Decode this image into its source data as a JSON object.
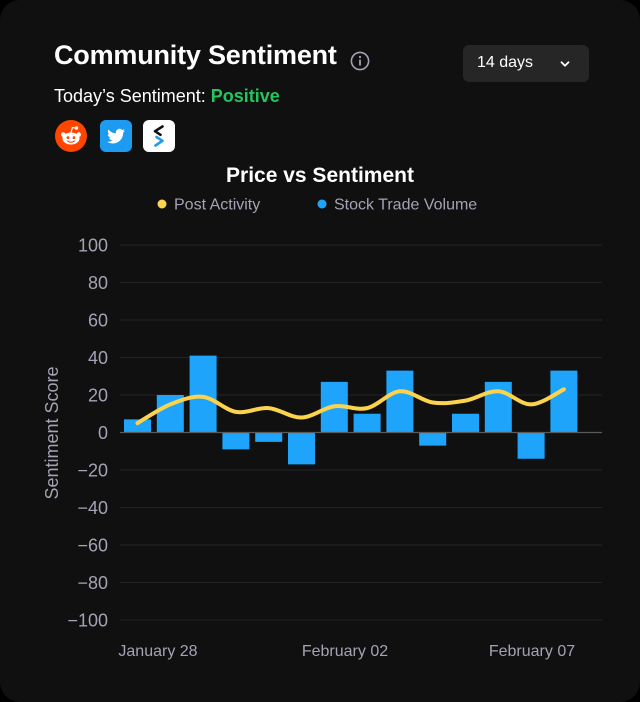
{
  "header": {
    "title": "Community Sentiment",
    "sentiment_prefix": "Today’s Sentiment:",
    "sentiment_value": "Positive",
    "sentiment_color": "#22c55e"
  },
  "range_select": {
    "selected": "14 days"
  },
  "sources": [
    {
      "name": "reddit-icon",
      "color": "#ff4500"
    },
    {
      "name": "twitter-icon",
      "color": "#1d9bf0"
    },
    {
      "name": "stocktwits-icon",
      "color": "#ffffff"
    }
  ],
  "chart_data": {
    "type": "bar",
    "title": "Price vs Sentiment",
    "ylabel": "Sentiment Score",
    "xlabel": "",
    "ylim": [
      -100,
      100
    ],
    "yticks": [
      100,
      80,
      60,
      40,
      20,
      0,
      -20,
      -40,
      -60,
      -80,
      -100
    ],
    "xtick_labels": [
      "January 28",
      "February 02",
      "February 07"
    ],
    "grid": true,
    "legend_position": "top-center",
    "series": [
      {
        "name": "Stock Trade Volume",
        "kind": "bar",
        "color": "#1ea5fb",
        "values": [
          7,
          20,
          41,
          -9,
          -5,
          -17,
          27,
          10,
          33,
          -7,
          10,
          27,
          -14,
          33
        ]
      },
      {
        "name": "Post Activity",
        "kind": "line",
        "color": "#fcd34d",
        "values": [
          5,
          15,
          19,
          11,
          13,
          8,
          14,
          13,
          22,
          16,
          17,
          22,
          15,
          23
        ]
      }
    ]
  }
}
